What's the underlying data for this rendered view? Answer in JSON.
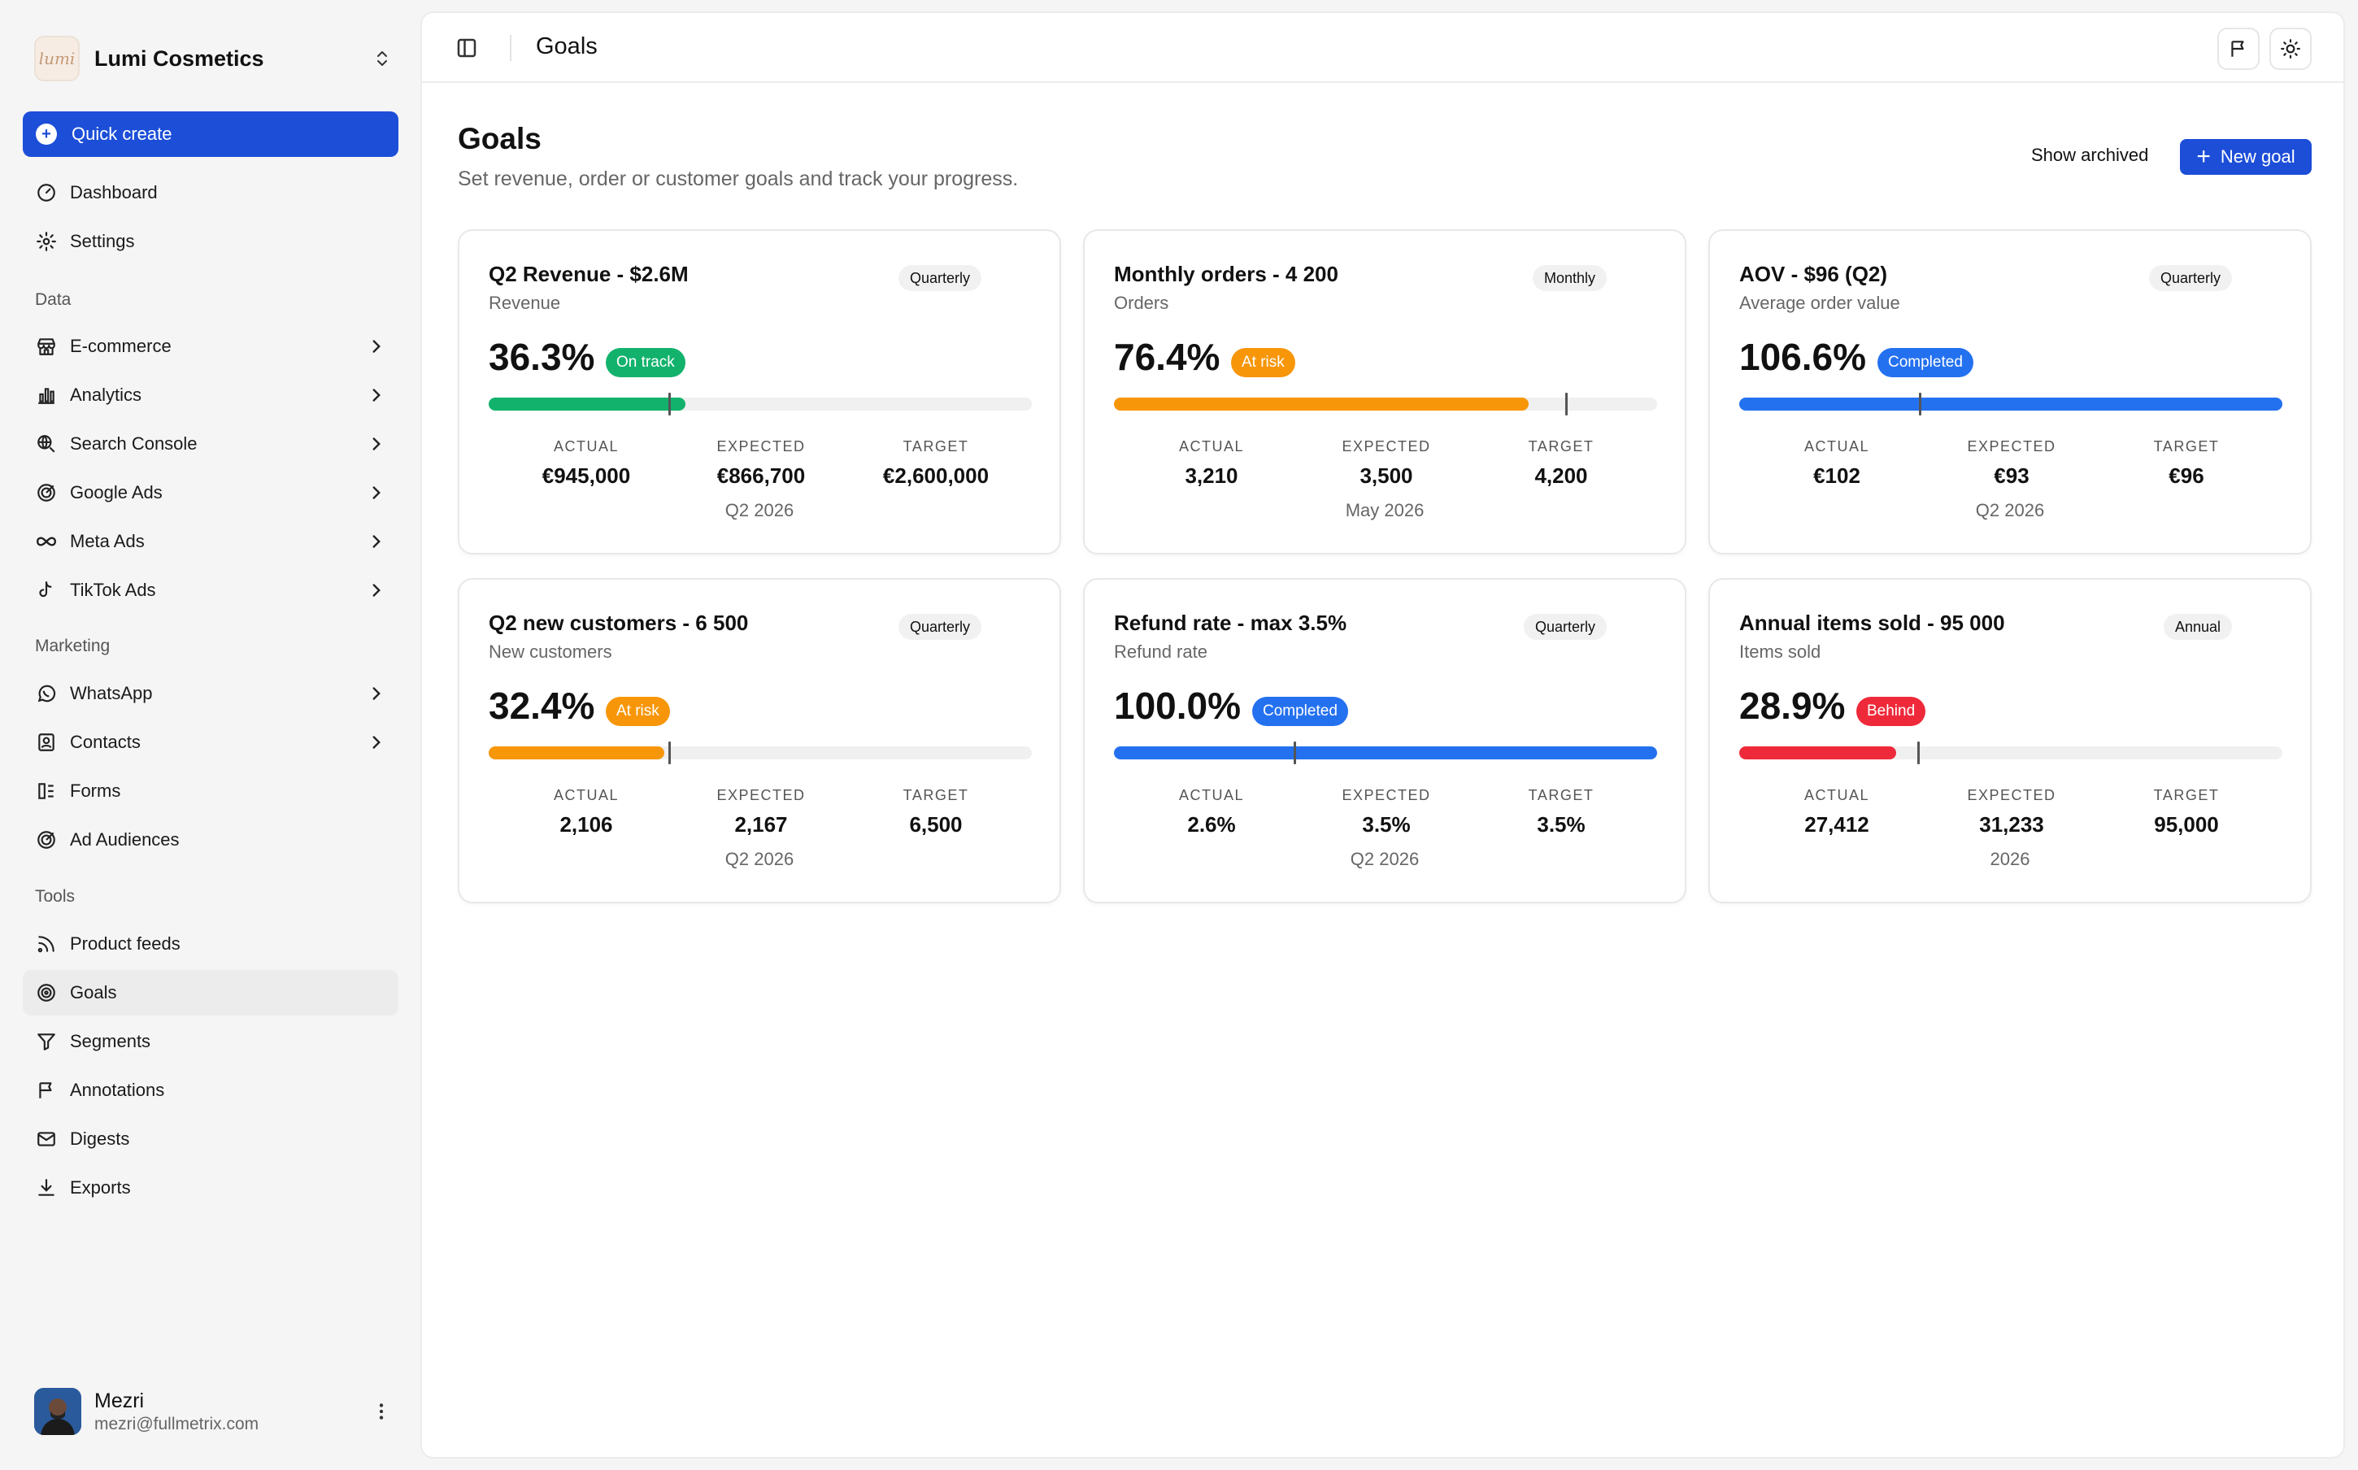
{
  "brand": {
    "logo_text": "lumi",
    "name": "Lumi Cosmetics"
  },
  "quick_create": "Quick create",
  "nav_top": [
    {
      "label": "Dashboard"
    },
    {
      "label": "Settings"
    }
  ],
  "sections": {
    "data": "Data",
    "marketing": "Marketing",
    "tools": "Tools"
  },
  "nav_data": [
    {
      "label": "E-commerce"
    },
    {
      "label": "Analytics"
    },
    {
      "label": "Search Console"
    },
    {
      "label": "Google Ads"
    },
    {
      "label": "Meta Ads"
    },
    {
      "label": "TikTok Ads"
    }
  ],
  "nav_marketing": [
    {
      "label": "WhatsApp"
    },
    {
      "label": "Contacts"
    },
    {
      "label": "Forms"
    },
    {
      "label": "Ad Audiences"
    }
  ],
  "nav_tools": [
    {
      "label": "Product feeds"
    },
    {
      "label": "Goals"
    },
    {
      "label": "Segments"
    },
    {
      "label": "Annotations"
    },
    {
      "label": "Digests"
    },
    {
      "label": "Exports"
    }
  ],
  "user": {
    "name": "Mezri",
    "email": "mezri@fullmetrix.com"
  },
  "topbar": {
    "title": "Goals"
  },
  "page": {
    "title": "Goals",
    "subtitle": "Set revenue, order or customer goals and track your progress.",
    "show_archived": "Show archived",
    "new_goal": "New goal"
  },
  "stat_labels": {
    "actual": "ACTUAL",
    "expected": "EXPECTED",
    "target": "TARGET"
  },
  "colors": {
    "green": "#12b26d",
    "orange": "#f79609",
    "blue": "#2471f0",
    "red": "#ee2a3a"
  },
  "goals": [
    {
      "title": "Q2 Revenue - $2.6M",
      "metric": "Revenue",
      "period": "Quarterly",
      "pct": "36.3%",
      "status": "On track",
      "status_color": "green",
      "progress": 0.363,
      "expected_fraction": 0.333,
      "actual": "€945,000",
      "expected": "€866,700",
      "target": "€2,600,000",
      "footer": "Q2 2026"
    },
    {
      "title": "Monthly orders - 4 200",
      "metric": "Orders",
      "period": "Monthly",
      "pct": "76.4%",
      "status": "At risk",
      "status_color": "orange",
      "progress": 0.764,
      "expected_fraction": 0.833,
      "actual": "3,210",
      "expected": "3,500",
      "target": "4,200",
      "footer": "May 2026"
    },
    {
      "title": "AOV - $96 (Q2)",
      "metric": "Average order value",
      "period": "Quarterly",
      "pct": "106.6%",
      "status": "Completed",
      "status_color": "blue",
      "progress": 1.0,
      "expected_fraction": 0.333,
      "actual": "€102",
      "expected": "€93",
      "target": "€96",
      "footer": "Q2 2026"
    },
    {
      "title": "Q2 new customers - 6 500",
      "metric": "New customers",
      "period": "Quarterly",
      "pct": "32.4%",
      "status": "At risk",
      "status_color": "orange",
      "progress": 0.324,
      "expected_fraction": 0.333,
      "actual": "2,106",
      "expected": "2,167",
      "target": "6,500",
      "footer": "Q2 2026"
    },
    {
      "title": "Refund rate - max 3.5%",
      "metric": "Refund rate",
      "period": "Quarterly",
      "pct": "100.0%",
      "status": "Completed",
      "status_color": "blue",
      "progress": 1.0,
      "expected_fraction": 0.333,
      "actual": "2.6%",
      "expected": "3.5%",
      "target": "3.5%",
      "footer": "Q2 2026"
    },
    {
      "title": "Annual items sold - 95 000",
      "metric": "Items sold",
      "period": "Annual",
      "pct": "28.9%",
      "status": "Behind",
      "status_color": "red",
      "progress": 0.289,
      "expected_fraction": 0.329,
      "actual": "27,412",
      "expected": "31,233",
      "target": "95,000",
      "footer": "2026"
    }
  ]
}
